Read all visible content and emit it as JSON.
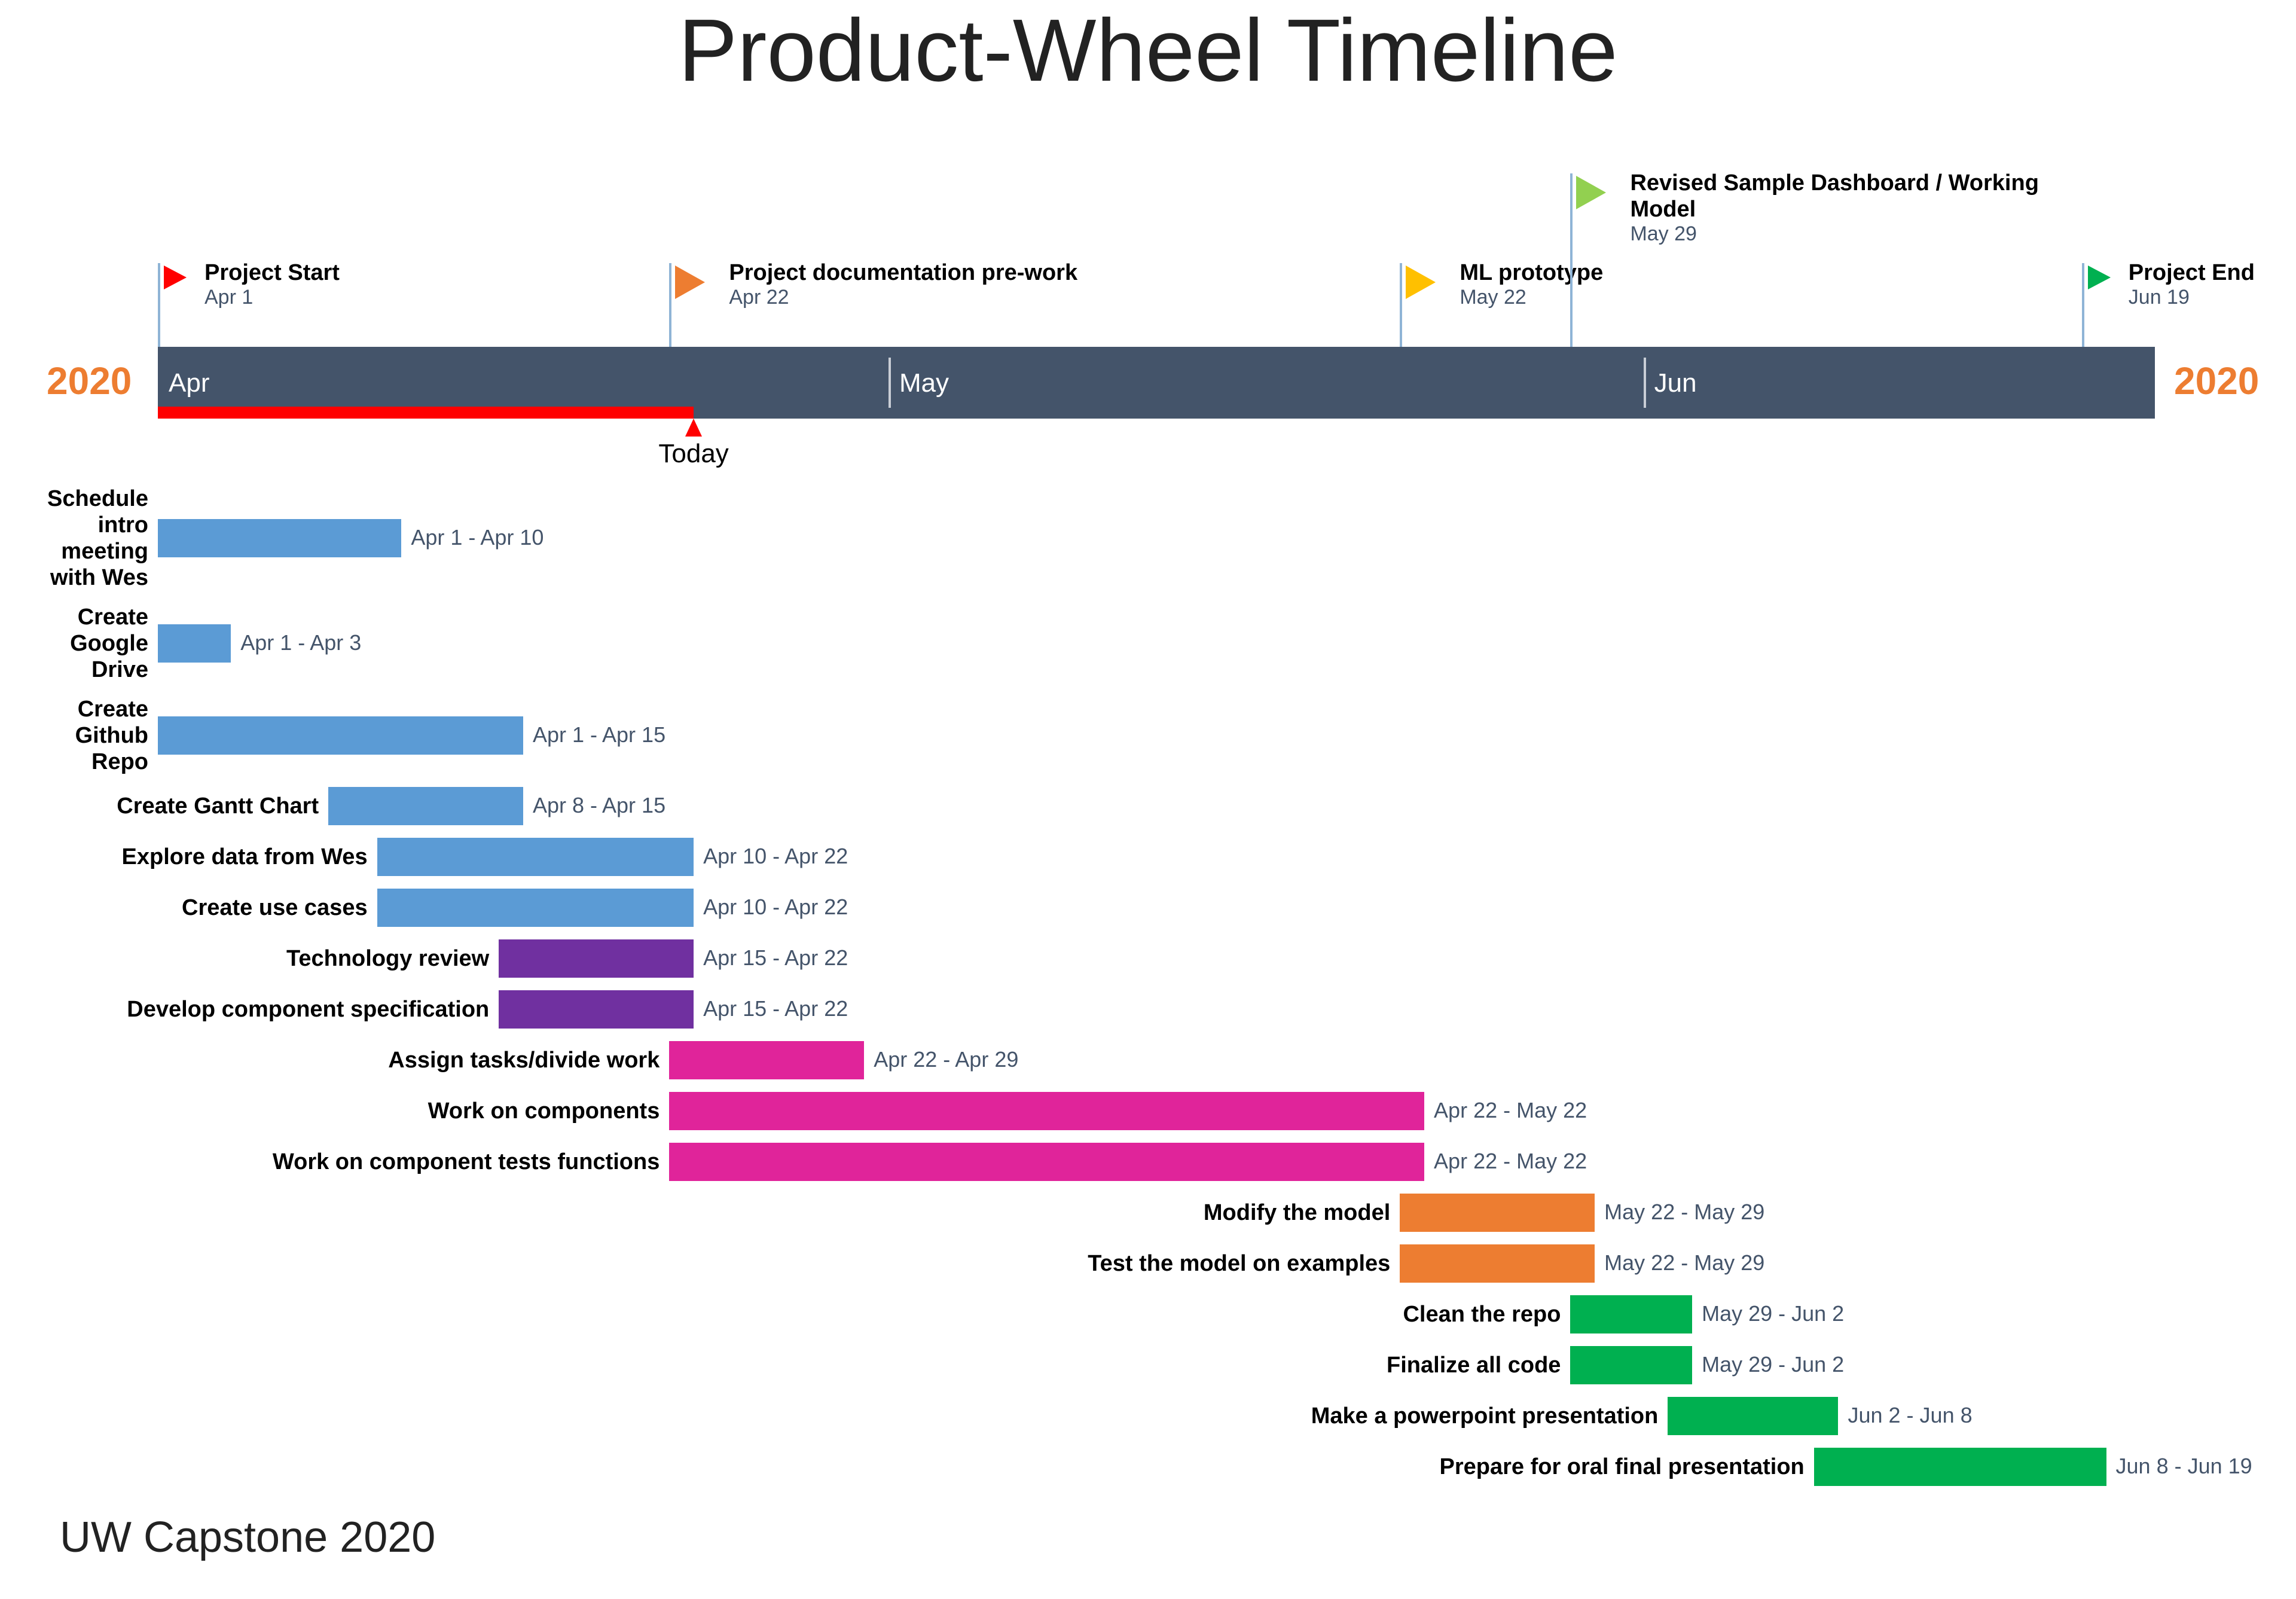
{
  "title": "Product-Wheel Timeline",
  "footer": "UW Capstone 2020",
  "year_left": "2020",
  "year_right": "2020",
  "today_label": "Today",
  "chart_data": {
    "type": "gantt",
    "x_axis": {
      "start": "2020-04-01",
      "end": "2020-06-22",
      "months": [
        "Apr",
        "May",
        "Jun"
      ],
      "month_starts": [
        "2020-04-01",
        "2020-05-01",
        "2020-06-01"
      ]
    },
    "today": "2020-04-23",
    "milestones": [
      {
        "name": "Project Start",
        "date_label": "Apr 1",
        "date": "2020-04-01",
        "color": "#FF0000"
      },
      {
        "name": "Project documentation pre-work",
        "date_label": "Apr 22",
        "date": "2020-04-22",
        "color": "#ED7D31"
      },
      {
        "name": "ML prototype",
        "date_label": "May 22",
        "date": "2020-05-22",
        "color": "#FFC000"
      },
      {
        "name": "Revised Sample Dashboard / Working Model",
        "date_label": "May 29",
        "date": "2020-05-29",
        "color": "#92D050"
      },
      {
        "name": "Project End",
        "date_label": "Jun 19",
        "date": "2020-06-19",
        "color": "#00B050"
      }
    ],
    "tasks": [
      {
        "name": "Schedule intro meeting with Wes",
        "start": "2020-04-01",
        "end": "2020-04-10",
        "date_label": "Apr 1 - Apr 10",
        "color": "#5B9BD5"
      },
      {
        "name": "Create Google Drive",
        "start": "2020-04-01",
        "end": "2020-04-03",
        "date_label": "Apr 1 - Apr 3",
        "color": "#5B9BD5"
      },
      {
        "name": "Create Github Repo",
        "start": "2020-04-01",
        "end": "2020-04-15",
        "date_label": "Apr 1 - Apr 15",
        "color": "#5B9BD5"
      },
      {
        "name": "Create Gantt Chart",
        "start": "2020-04-08",
        "end": "2020-04-15",
        "date_label": "Apr 8 - Apr 15",
        "color": "#5B9BD5"
      },
      {
        "name": "Explore data from Wes",
        "start": "2020-04-10",
        "end": "2020-04-22",
        "date_label": "Apr 10 - Apr 22",
        "color": "#5B9BD5"
      },
      {
        "name": "Create use cases",
        "start": "2020-04-10",
        "end": "2020-04-22",
        "date_label": "Apr 10 - Apr 22",
        "color": "#5B9BD5"
      },
      {
        "name": "Technology review",
        "start": "2020-04-15",
        "end": "2020-04-22",
        "date_label": "Apr 15 - Apr 22",
        "color": "#7030A0"
      },
      {
        "name": "Develop component specification",
        "start": "2020-04-15",
        "end": "2020-04-22",
        "date_label": "Apr 15 - Apr 22",
        "color": "#7030A0"
      },
      {
        "name": "Assign tasks/divide work",
        "start": "2020-04-22",
        "end": "2020-04-29",
        "date_label": "Apr 22 - Apr 29",
        "color": "#E0249A"
      },
      {
        "name": "Work on components",
        "start": "2020-04-22",
        "end": "2020-05-22",
        "date_label": "Apr 22 - May 22",
        "color": "#E0249A"
      },
      {
        "name": "Work on component tests functions",
        "start": "2020-04-22",
        "end": "2020-05-22",
        "date_label": "Apr 22 - May 22",
        "color": "#E0249A"
      },
      {
        "name": "Modify the model",
        "start": "2020-05-22",
        "end": "2020-05-29",
        "date_label": "May 22 - May 29",
        "color": "#ED7D31"
      },
      {
        "name": "Test the model on examples",
        "start": "2020-05-22",
        "end": "2020-05-29",
        "date_label": "May 22 - May 29",
        "color": "#ED7D31"
      },
      {
        "name": "Clean the repo",
        "start": "2020-05-29",
        "end": "2020-06-02",
        "date_label": "May 29 - Jun 2",
        "color": "#00B050"
      },
      {
        "name": "Finalize all code",
        "start": "2020-05-29",
        "end": "2020-06-02",
        "date_label": "May 29 - Jun 2",
        "color": "#00B050"
      },
      {
        "name": "Make a powerpoint presentation",
        "start": "2020-06-02",
        "end": "2020-06-08",
        "date_label": "Jun 2 - Jun 8",
        "color": "#00B050"
      },
      {
        "name": "Prepare for oral final presentation",
        "start": "2020-06-08",
        "end": "2020-06-19",
        "date_label": "Jun 8 - Jun 19",
        "color": "#00B050"
      }
    ]
  }
}
